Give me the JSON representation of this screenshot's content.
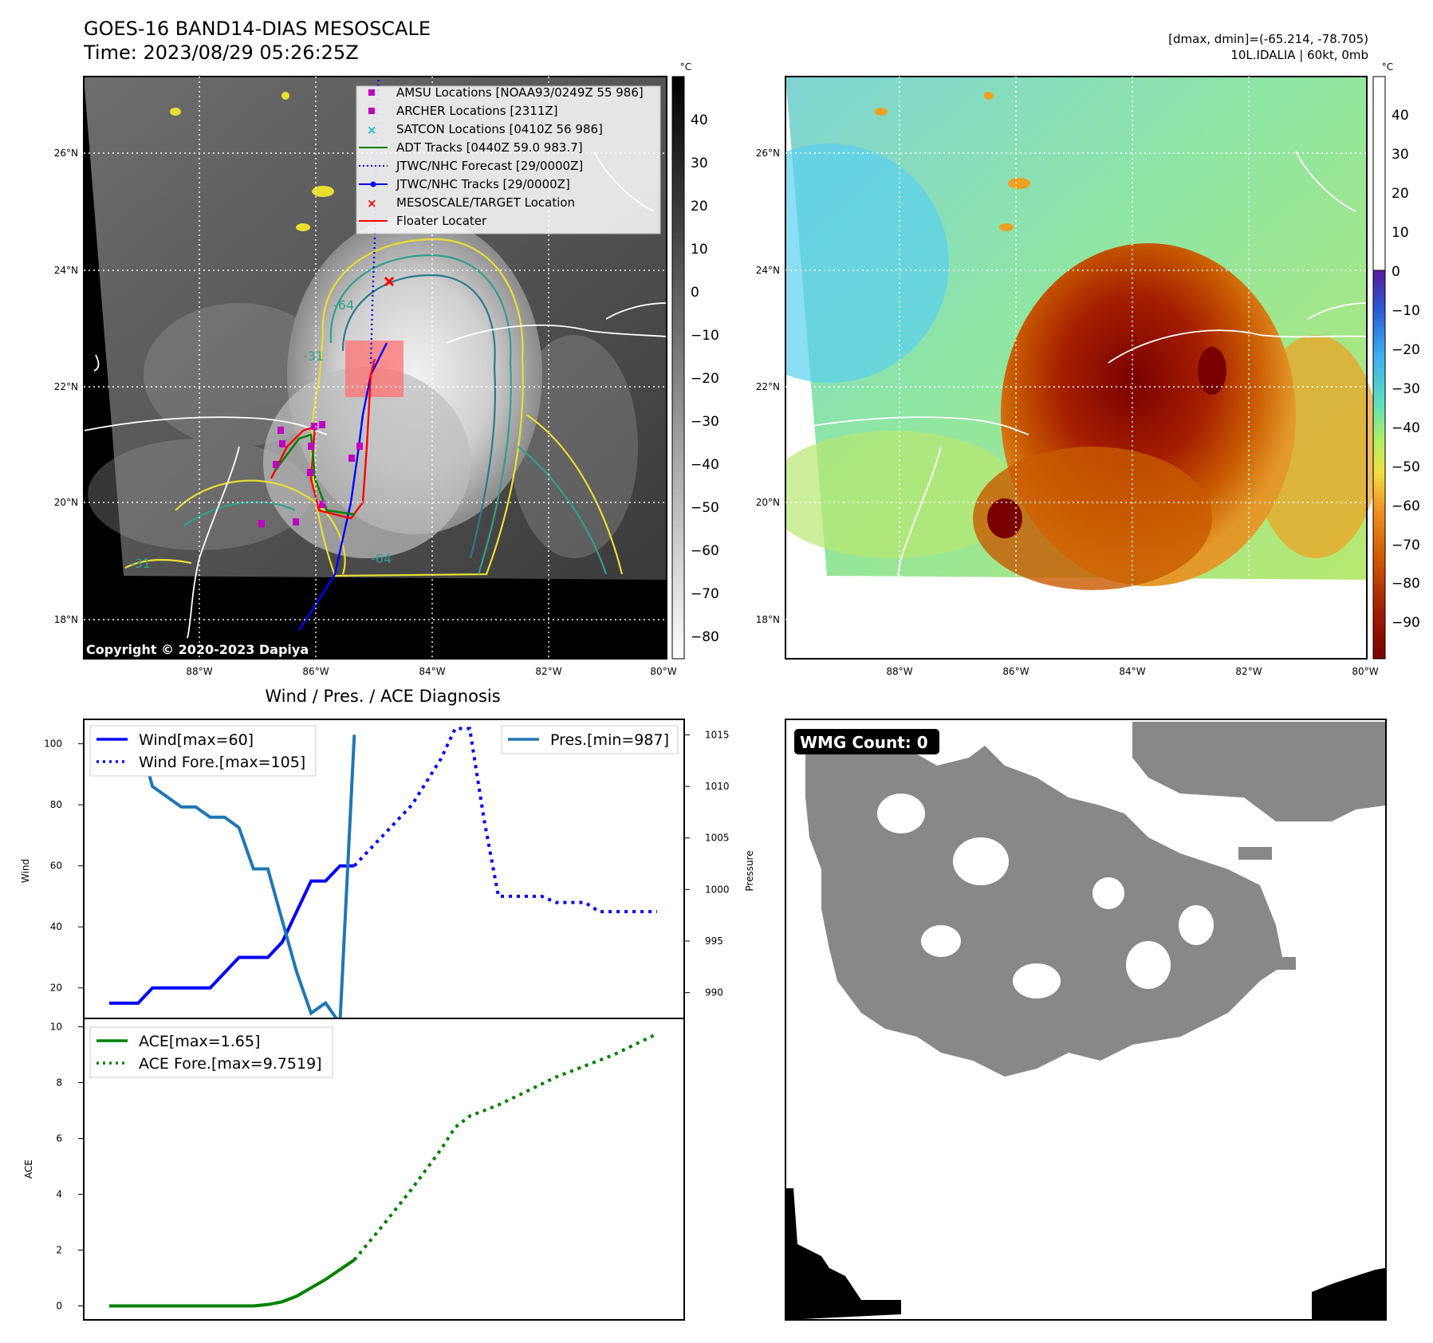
{
  "header": {
    "title_line1": "GOES-16 BAND14-DIAS MESOSCALE",
    "title_line2": "Time: 2023/08/29 05:26:25Z",
    "stats_line1": "[dmax, dmin]=(-65.214, -78.705)",
    "stats_line2": "10L.IDALIA | 60kt, 0mb"
  },
  "map": {
    "lat_labels": [
      "26°N",
      "24°N",
      "22°N",
      "20°N",
      "18°N"
    ],
    "lon_labels": [
      "88°W",
      "86°W",
      "84°W",
      "82°W",
      "80°W"
    ],
    "copyright": "Copyright © 2020-2023 Dapiya",
    "contour_labels": [
      "-64",
      "-31",
      "-64",
      "-31"
    ],
    "legend": [
      {
        "label": "AMSU Locations [NOAA93/0249Z 55 986]",
        "color": "#bf00bf",
        "marker": "square"
      },
      {
        "label": "ARCHER Locations [2311Z]",
        "color": "#bf00bf",
        "marker": "square"
      },
      {
        "label": "SATCON Locations [0410Z 56 986]",
        "color": "#17becf",
        "marker": "x"
      },
      {
        "label": "ADT Tracks [0440Z 59.0 983.7]",
        "color": "#008000",
        "marker": "line"
      },
      {
        "label": "JTWC/NHC Forecast [29/0000Z]",
        "color": "#0000ff",
        "marker": "dotted"
      },
      {
        "label": "JTWC/NHC Tracks [29/0000Z]",
        "color": "#0000ff",
        "marker": "line-dot"
      },
      {
        "label": "MESOSCALE/TARGET Location",
        "color": "#ff0000",
        "marker": "x"
      },
      {
        "label": "Floater Locater",
        "color": "#ff0000",
        "marker": "line"
      }
    ]
  },
  "colorbar_gray": {
    "unit": "°C",
    "ticks": [
      "40",
      "30",
      "20",
      "10",
      "0",
      "−10",
      "−20",
      "−30",
      "−40",
      "−50",
      "−60",
      "−70",
      "−80"
    ]
  },
  "colorbar_color": {
    "unit": "°C",
    "ticks": [
      "40",
      "30",
      "20",
      "10",
      "0",
      "−10",
      "−20",
      "−30",
      "−40",
      "−50",
      "−60",
      "−70",
      "−80",
      "−90"
    ]
  },
  "wmg": {
    "label": "WMG Count: 0"
  },
  "chart_data": [
    {
      "type": "line",
      "title": "Wind / Pres. / ACE Diagnosis",
      "ylabel": "Wind",
      "ylim": [
        10,
        108
      ],
      "yticks": [
        "100",
        "80",
        "60",
        "40",
        "20"
      ],
      "x_index_range": [
        0,
        38
      ],
      "series": [
        {
          "name": "Wind[max=60]",
          "color": "#0000ff",
          "style": "solid",
          "x": [
            0,
            2,
            3,
            4,
            5,
            6,
            7,
            8,
            9,
            10,
            11,
            12,
            13,
            14,
            15,
            16,
            17
          ],
          "values": [
            15,
            15,
            20,
            20,
            20,
            20,
            20,
            25,
            30,
            30,
            30,
            35,
            45,
            55,
            55,
            60,
            60
          ]
        },
        {
          "name": "Wind Fore.[max=105]",
          "color": "#0000ff",
          "style": "dotted",
          "x": [
            17,
            19,
            21,
            23,
            24,
            25,
            26,
            27,
            28,
            29,
            30,
            31,
            32,
            33,
            34,
            35,
            36,
            37,
            38
          ],
          "values": [
            60,
            70,
            80,
            95,
            105,
            105,
            75,
            50,
            50,
            50,
            50,
            48,
            48,
            48,
            45,
            45,
            45,
            45,
            45
          ]
        }
      ]
    },
    {
      "type": "line",
      "ylabel": "Pressure",
      "ylim": [
        987.5,
        1016.5
      ],
      "yticks": [
        "1015",
        "1010",
        "1005",
        "1000",
        "995",
        "990"
      ],
      "series": [
        {
          "name": "Pres.[min=987]",
          "color": "#1f77b4",
          "style": "solid",
          "x": [
            0,
            1,
            2,
            3,
            4,
            5,
            6,
            7,
            8,
            9,
            10,
            11,
            12,
            13,
            14,
            15,
            16,
            17
          ],
          "values": [
            1015,
            1015,
            1015,
            1010,
            1009,
            1008,
            1008,
            1007,
            1007,
            1006,
            1002,
            1002,
            997,
            992,
            988,
            989,
            987,
            1015
          ]
        }
      ]
    },
    {
      "type": "line",
      "ylabel": "ACE",
      "ylim": [
        -0.5,
        10.3
      ],
      "yticks": [
        "10",
        "8",
        "6",
        "4",
        "2",
        "0"
      ],
      "series": [
        {
          "name": "ACE[max=1.65]",
          "color": "#008000",
          "style": "solid",
          "x": [
            0,
            2,
            4,
            6,
            8,
            10,
            11,
            12,
            13,
            14,
            15,
            16,
            17
          ],
          "values": [
            0,
            0,
            0,
            0,
            0,
            0,
            0.05,
            0.15,
            0.35,
            0.65,
            0.95,
            1.3,
            1.65
          ]
        },
        {
          "name": "ACE Fore.[max=9.7519]",
          "color": "#008000",
          "style": "dotted",
          "x": [
            17,
            19,
            21,
            23,
            24,
            25,
            27,
            29,
            31,
            33,
            35,
            37,
            38
          ],
          "values": [
            1.65,
            2.9,
            4.2,
            5.6,
            6.4,
            6.8,
            7.2,
            7.7,
            8.2,
            8.6,
            9.0,
            9.5,
            9.75
          ]
        }
      ]
    }
  ]
}
